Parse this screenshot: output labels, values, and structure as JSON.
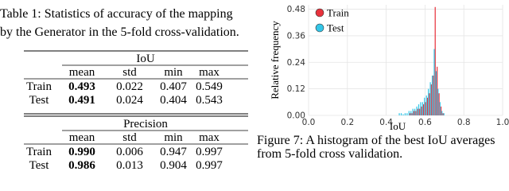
{
  "table": {
    "caption_lines": [
      "Table 1:  Statistics of accuracy of the mapping",
      "by the Generator in the 5-fold cross-validation."
    ],
    "sections": [
      {
        "title": "IoU",
        "columns": [
          "mean",
          "std",
          "min",
          "max"
        ],
        "rows": [
          {
            "label": "Train",
            "values": [
              "0.493",
              "0.022",
              "0.407",
              "0.549"
            ]
          },
          {
            "label": "Test",
            "values": [
              "0.491",
              "0.024",
              "0.404",
              "0.543"
            ]
          }
        ]
      },
      {
        "title": "Precision",
        "columns": [
          "mean",
          "std",
          "min",
          "max"
        ],
        "rows": [
          {
            "label": "Train",
            "values": [
              "0.990",
              "0.006",
              "0.947",
              "0.997"
            ]
          },
          {
            "label": "Test",
            "values": [
              "0.986",
              "0.013",
              "0.904",
              "0.997"
            ]
          }
        ]
      }
    ]
  },
  "chart_data": {
    "type": "histogram",
    "x_label": "IoU",
    "y_label": "Relative  frequency",
    "bins": [
      0.46,
      0.47,
      0.48,
      0.49,
      0.5,
      0.51,
      0.52,
      0.53,
      0.54,
      0.55,
      0.56,
      0.57,
      0.58,
      0.59,
      0.6,
      0.61,
      0.62,
      0.63,
      0.64,
      0.65,
      0.66,
      0.67,
      0.68,
      0.69,
      0.7
    ],
    "series": [
      {
        "name": "Train",
        "color": "#e8323c",
        "values": [
          0,
          0,
          0,
          0,
          0,
          0,
          0.01,
          0.01,
          0.02,
          0.02,
          0.03,
          0.03,
          0.04,
          0.05,
          0.06,
          0.08,
          0.1,
          0.14,
          0.18,
          0.49,
          0.22,
          0.1,
          0.04,
          0.01
        ]
      },
      {
        "name": "Test",
        "color": "#33c6e8",
        "values": [
          0.01,
          0.01,
          0.005,
          0.01,
          0.01,
          0.02,
          0.02,
          0.03,
          0.03,
          0.04,
          0.05,
          0.06,
          0.06,
          0.08,
          0.09,
          0.12,
          0.15,
          0.18,
          0.3,
          0.2,
          0.12,
          0.06,
          0.02,
          0.01
        ]
      }
    ],
    "xlim": [
      0,
      1
    ],
    "ylim": [
      0,
      0.5
    ],
    "xticks": [
      {
        "value": 0,
        "label": "0.0"
      },
      0.2,
      0.4,
      0.6,
      0.8,
      {
        "value": 1,
        "label": "1.0"
      }
    ],
    "yticks": [
      {
        "value": 0,
        "label": "0.00"
      },
      0.12,
      0.24,
      0.36,
      0.48
    ],
    "grid": true,
    "legend": "top-left",
    "caption_lines": [
      "Figure 7: A histogram of the best IoU averages",
      "from 5-fold cross validation."
    ]
  }
}
